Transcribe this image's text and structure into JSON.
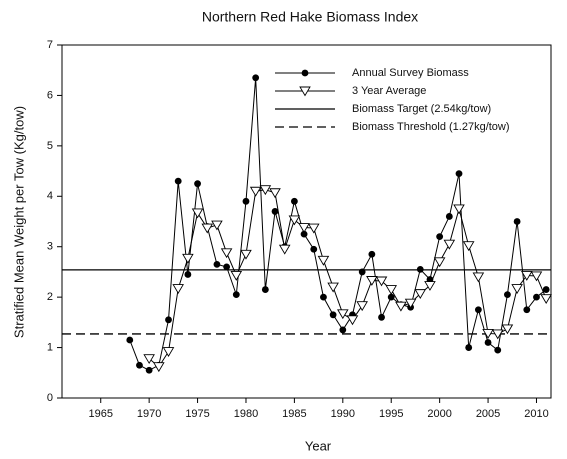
{
  "chart_data": {
    "type": "line",
    "title": "Northern Red Hake Biomass Index",
    "x_label": "Year",
    "y_label": "Stratified Mean Weight per Tow (Kg/tow)",
    "x": [
      1968,
      1969,
      1970,
      1971,
      1972,
      1973,
      1974,
      1975,
      1976,
      1977,
      1978,
      1979,
      1980,
      1981,
      1982,
      1983,
      1984,
      1985,
      1986,
      1987,
      1988,
      1989,
      1990,
      1991,
      1992,
      1993,
      1994,
      1995,
      1996,
      1997,
      1998,
      1999,
      2000,
      2001,
      2002,
      2003,
      2004,
      2005,
      2006,
      2007,
      2008,
      2009,
      2010,
      2011
    ],
    "series": [
      {
        "name": "Annual Survey Biomass",
        "color": "#000000",
        "marker": "circle",
        "values": [
          1.15,
          0.65,
          0.55,
          0.65,
          1.55,
          4.3,
          2.45,
          4.25,
          3.4,
          2.65,
          2.6,
          2.05,
          3.9,
          6.35,
          2.15,
          3.7,
          3.0,
          3.9,
          3.25,
          2.95,
          2.0,
          1.65,
          1.35,
          1.65,
          2.5,
          2.85,
          1.6,
          2.0,
          1.85,
          1.8,
          2.55,
          2.35,
          3.2,
          3.6,
          4.45,
          1.0,
          1.75,
          1.1,
          0.95,
          2.05,
          3.5,
          1.75,
          2.0,
          2.15
        ]
      },
      {
        "name": "3 Year Average",
        "color": "#000000",
        "marker": "triangle-down",
        "values": [
          null,
          null,
          0.78,
          0.62,
          0.92,
          2.17,
          2.77,
          3.67,
          3.37,
          3.43,
          2.88,
          2.43,
          2.85,
          4.1,
          4.13,
          4.07,
          2.95,
          3.53,
          3.38,
          3.37,
          2.73,
          2.2,
          1.67,
          1.55,
          1.83,
          2.33,
          2.32,
          2.15,
          1.82,
          1.88,
          2.07,
          2.23,
          2.7,
          3.05,
          3.75,
          3.02,
          2.4,
          1.28,
          1.27,
          1.37,
          2.17,
          2.43,
          2.42,
          1.97
        ]
      }
    ],
    "reference_lines": [
      {
        "name": "Biomass Target (2.54kg/tow)",
        "value": 2.54,
        "style": "solid",
        "color": "#000000"
      },
      {
        "name": "Biomass Threshold (1.27kg/tow)",
        "value": 1.27,
        "style": "dashed",
        "color": "#000000"
      }
    ],
    "xlim": [
      1961,
      2011.5
    ],
    "ylim": [
      0,
      7
    ],
    "xticks": [
      1965,
      1970,
      1975,
      1980,
      1985,
      1990,
      1995,
      2000,
      2005,
      2010
    ],
    "yticks": [
      0,
      1,
      2,
      3,
      4,
      5,
      6,
      7
    ],
    "legend": "upper right"
  }
}
